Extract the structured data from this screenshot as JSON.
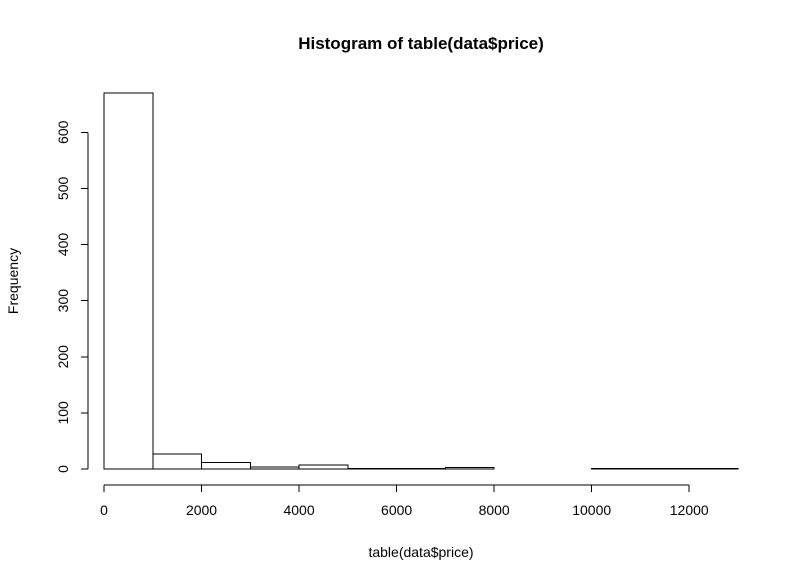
{
  "chart_data": {
    "type": "bar",
    "title": "Histogram of table(data$price)",
    "xlabel": "table(data$price)",
    "ylabel": "Frequency",
    "bins": [
      {
        "x0": 0,
        "x1": 1000,
        "count": 670
      },
      {
        "x0": 1000,
        "x1": 2000,
        "count": 27
      },
      {
        "x0": 2000,
        "x1": 3000,
        "count": 12
      },
      {
        "x0": 3000,
        "x1": 4000,
        "count": 4
      },
      {
        "x0": 4000,
        "x1": 5000,
        "count": 7
      },
      {
        "x0": 5000,
        "x1": 6000,
        "count": 1
      },
      {
        "x0": 6000,
        "x1": 7000,
        "count": 1
      },
      {
        "x0": 7000,
        "x1": 8000,
        "count": 3
      },
      {
        "x0": 8000,
        "x1": 9000,
        "count": 0
      },
      {
        "x0": 9000,
        "x1": 10000,
        "count": 0
      },
      {
        "x0": 10000,
        "x1": 11000,
        "count": 1
      },
      {
        "x0": 11000,
        "x1": 12000,
        "count": 1
      },
      {
        "x0": 12000,
        "x1": 13000,
        "count": 1
      }
    ],
    "xlim": [
      0,
      13000
    ],
    "ylim": [
      0,
      670
    ],
    "xticks": [
      0,
      2000,
      4000,
      6000,
      8000,
      10000,
      12000
    ],
    "yticks": [
      0,
      100,
      200,
      300,
      400,
      500,
      600
    ],
    "grid": false,
    "colors": {
      "bar_fill": "#ffffff",
      "bar_stroke": "#000000"
    }
  }
}
